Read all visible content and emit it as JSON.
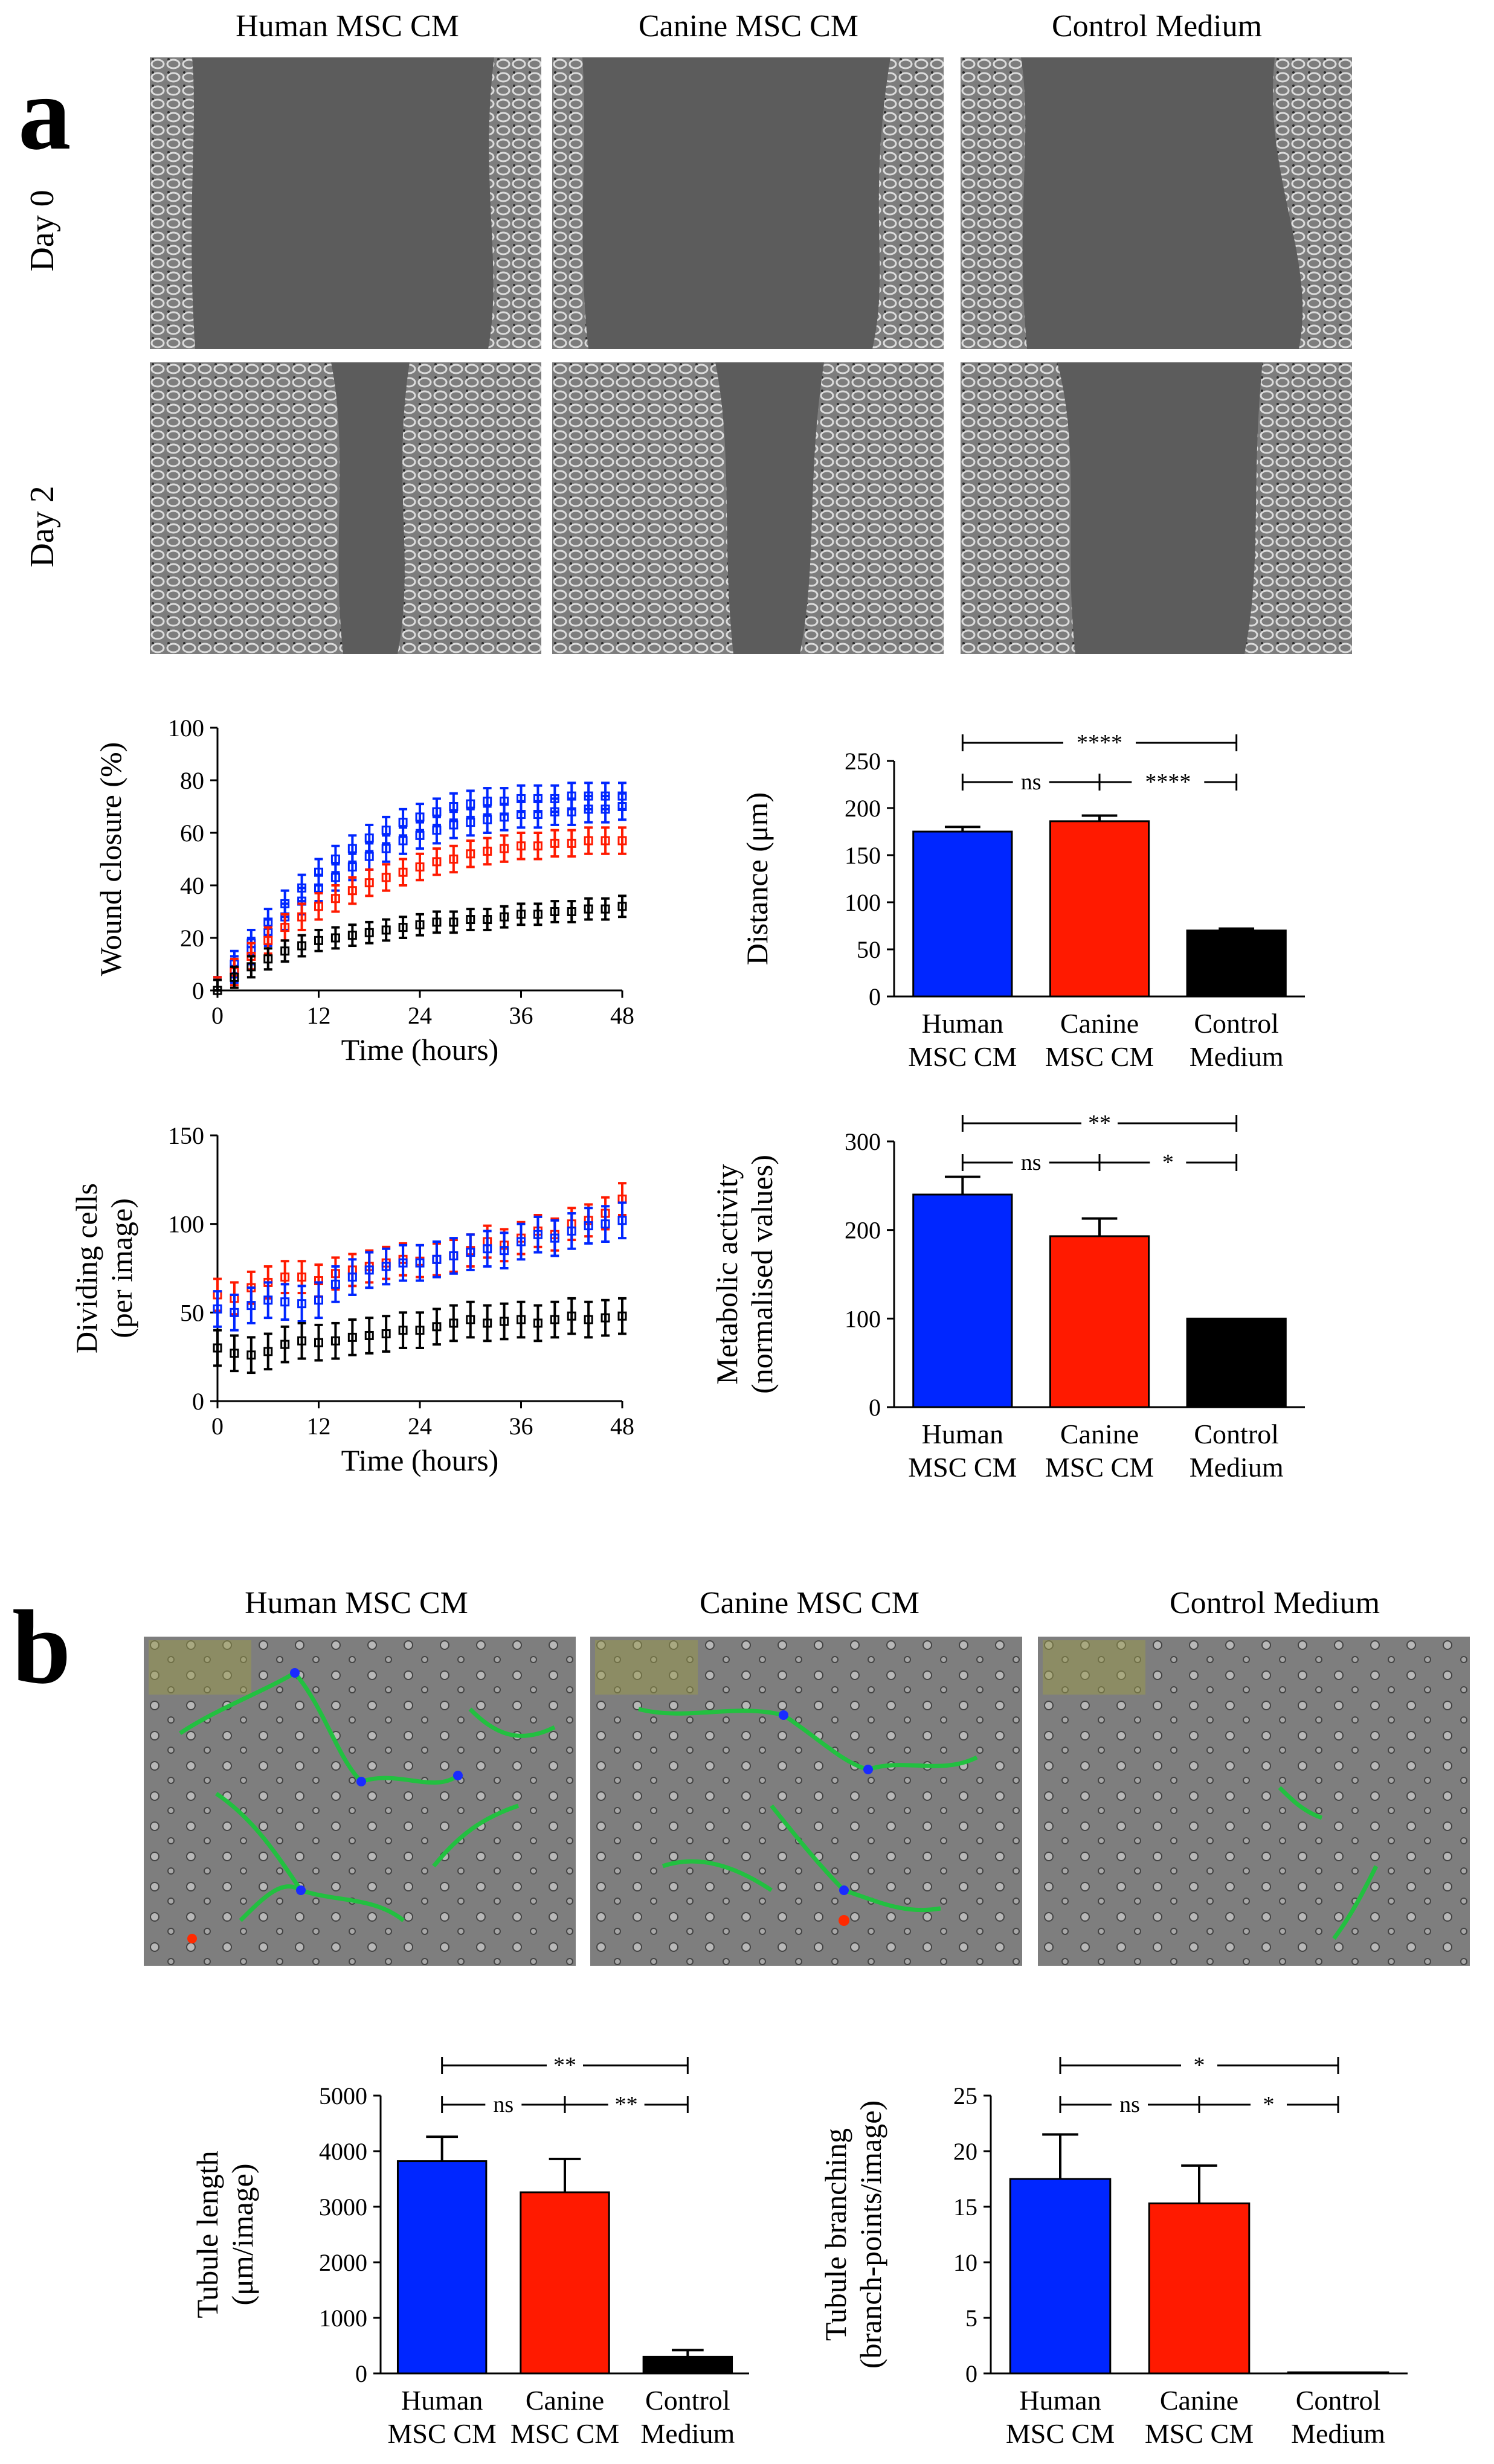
{
  "panel_a": {
    "letter": "a",
    "columns": [
      "Human MSC CM",
      "Canine MSC CM",
      "Control Medium"
    ],
    "rows": [
      "Day 0",
      "Day 2"
    ]
  },
  "panel_b": {
    "letter": "b",
    "columns": [
      "Human MSC CM",
      "Canine MSC CM",
      "Control Medium"
    ]
  },
  "colors": {
    "human": "#0026ff",
    "canine": "#ff1a00",
    "control": "#000000"
  },
  "chart_data": [
    {
      "id": "wound-closure",
      "type": "line",
      "xlabel": "Time (hours)",
      "ylabel": "Wound closure (%)",
      "xlim": [
        0,
        48
      ],
      "ylim": [
        0,
        100
      ],
      "xticks": [
        0,
        12,
        24,
        36,
        48
      ],
      "yticks": [
        0,
        20,
        40,
        60,
        80,
        100
      ],
      "series": [
        {
          "group": "human-a",
          "color": "#0026ff",
          "x": [
            0,
            2,
            4,
            6,
            8,
            10,
            12,
            14,
            16,
            18,
            20,
            22,
            24,
            26,
            28,
            30,
            32,
            34,
            36,
            38,
            40,
            42,
            44,
            46,
            48
          ],
          "y": [
            0,
            10,
            18,
            26,
            33,
            39,
            45,
            50,
            54,
            58,
            61,
            64,
            66,
            68,
            70,
            71,
            72,
            72,
            73,
            73,
            73,
            74,
            74,
            74,
            74
          ],
          "err": 5
        },
        {
          "group": "human-b",
          "color": "#0026ff",
          "x": [
            0,
            2,
            4,
            6,
            8,
            10,
            12,
            14,
            16,
            18,
            20,
            22,
            24,
            26,
            28,
            30,
            32,
            34,
            36,
            38,
            40,
            42,
            44,
            46,
            48
          ],
          "y": [
            0,
            8,
            15,
            22,
            28,
            34,
            39,
            43,
            47,
            51,
            54,
            57,
            59,
            61,
            63,
            64,
            65,
            66,
            67,
            67,
            68,
            68,
            69,
            69,
            70
          ],
          "err": 5
        },
        {
          "group": "canine",
          "color": "#ff1a00",
          "x": [
            0,
            2,
            4,
            6,
            8,
            10,
            12,
            14,
            16,
            18,
            20,
            22,
            24,
            26,
            28,
            30,
            32,
            34,
            36,
            38,
            40,
            42,
            44,
            46,
            48
          ],
          "y": [
            0,
            7,
            13,
            19,
            24,
            28,
            32,
            35,
            38,
            41,
            43,
            45,
            47,
            49,
            50,
            52,
            53,
            54,
            55,
            55,
            56,
            56,
            57,
            57,
            57
          ],
          "err": 5
        },
        {
          "group": "control",
          "color": "#000000",
          "x": [
            0,
            2,
            4,
            6,
            8,
            10,
            12,
            14,
            16,
            18,
            20,
            22,
            24,
            26,
            28,
            30,
            32,
            34,
            36,
            38,
            40,
            42,
            44,
            46,
            48
          ],
          "y": [
            0,
            5,
            9,
            12,
            15,
            17,
            19,
            20,
            21,
            22,
            23,
            24,
            25,
            26,
            26,
            27,
            27,
            28,
            29,
            29,
            30,
            30,
            31,
            31,
            32
          ],
          "err": 4
        }
      ]
    },
    {
      "id": "distance",
      "type": "bar",
      "ylabel": "Distance (μm)",
      "categories": [
        [
          "Human",
          "MSC CM"
        ],
        [
          "Canine",
          "MSC CM"
        ],
        [
          "Control",
          "Medium"
        ]
      ],
      "values": [
        175,
        186,
        70
      ],
      "errors": [
        5,
        6,
        2
      ],
      "colors": [
        "#0026ff",
        "#ff1a00",
        "#000000"
      ],
      "ylim": [
        0,
        250
      ],
      "yticks": [
        0,
        50,
        100,
        150,
        200,
        250
      ],
      "significance": [
        {
          "from": 0,
          "to": 2,
          "label": "****",
          "level": 2
        },
        {
          "from": 0,
          "to": 1,
          "label": "ns",
          "level": 1
        },
        {
          "from": 1,
          "to": 2,
          "label": "****",
          "level": 1
        }
      ]
    },
    {
      "id": "dividing-cells",
      "type": "line",
      "xlabel": "Time (hours)",
      "ylabel": [
        "Dividing cells",
        "(per image)"
      ],
      "xlim": [
        0,
        48
      ],
      "ylim": [
        0,
        150
      ],
      "xticks": [
        0,
        12,
        24,
        36,
        48
      ],
      "yticks": [
        0,
        50,
        100,
        150
      ],
      "series": [
        {
          "group": "canine",
          "color": "#ff1a00",
          "x": [
            0,
            2,
            4,
            6,
            8,
            10,
            12,
            14,
            16,
            18,
            20,
            22,
            24,
            26,
            28,
            30,
            32,
            34,
            36,
            38,
            40,
            42,
            44,
            46,
            48
          ],
          "y": [
            60,
            58,
            64,
            67,
            70,
            70,
            68,
            72,
            74,
            76,
            78,
            80,
            79,
            80,
            82,
            85,
            90,
            88,
            92,
            96,
            94,
            100,
            102,
            106,
            114
          ],
          "err": 9
        },
        {
          "group": "human",
          "color": "#0026ff",
          "x": [
            0,
            2,
            4,
            6,
            8,
            10,
            12,
            14,
            16,
            18,
            20,
            22,
            24,
            26,
            28,
            30,
            32,
            34,
            36,
            38,
            40,
            42,
            44,
            46,
            48
          ],
          "y": [
            52,
            50,
            54,
            57,
            56,
            55,
            57,
            66,
            70,
            74,
            76,
            78,
            78,
            80,
            82,
            84,
            86,
            85,
            90,
            94,
            92,
            96,
            99,
            100,
            102
          ],
          "err": 10
        },
        {
          "group": "control",
          "color": "#000000",
          "x": [
            0,
            2,
            4,
            6,
            8,
            10,
            12,
            14,
            16,
            18,
            20,
            22,
            24,
            26,
            28,
            30,
            32,
            34,
            36,
            38,
            40,
            42,
            44,
            46,
            48
          ],
          "y": [
            30,
            27,
            26,
            28,
            32,
            34,
            33,
            34,
            36,
            37,
            38,
            40,
            40,
            42,
            44,
            46,
            44,
            45,
            46,
            44,
            46,
            48,
            46,
            47,
            48
          ],
          "err": 10
        }
      ]
    },
    {
      "id": "metabolic-activity",
      "type": "bar",
      "ylabel": [
        "Metabolic activity",
        "(normalised values)"
      ],
      "categories": [
        [
          "Human",
          "MSC CM"
        ],
        [
          "Canine",
          "MSC CM"
        ],
        [
          "Control",
          "Medium"
        ]
      ],
      "values": [
        240,
        193,
        100
      ],
      "errors": [
        20,
        20,
        0
      ],
      "colors": [
        "#0026ff",
        "#ff1a00",
        "#000000"
      ],
      "ylim": [
        0,
        300
      ],
      "yticks": [
        0,
        100,
        200,
        300
      ],
      "significance": [
        {
          "from": 0,
          "to": 2,
          "label": "**",
          "level": 2
        },
        {
          "from": 0,
          "to": 1,
          "label": "ns",
          "level": 1
        },
        {
          "from": 1,
          "to": 2,
          "label": "*",
          "level": 1
        }
      ]
    },
    {
      "id": "tubule-length",
      "type": "bar",
      "ylabel": [
        "Tubule length",
        "(μm/image)"
      ],
      "categories": [
        [
          "Human",
          "MSC CM"
        ],
        [
          "Canine",
          "MSC CM"
        ],
        [
          "Control",
          "Medium"
        ]
      ],
      "values": [
        3820,
        3260,
        300
      ],
      "errors": [
        440,
        600,
        120
      ],
      "colors": [
        "#0026ff",
        "#ff1a00",
        "#000000"
      ],
      "ylim": [
        0,
        5000
      ],
      "yticks": [
        0,
        1000,
        2000,
        3000,
        4000,
        5000
      ],
      "significance": [
        {
          "from": 0,
          "to": 2,
          "label": "**",
          "level": 2
        },
        {
          "from": 0,
          "to": 1,
          "label": "ns",
          "level": 1
        },
        {
          "from": 1,
          "to": 2,
          "label": "**",
          "level": 1
        }
      ]
    },
    {
      "id": "tubule-branching",
      "type": "bar",
      "ylabel": [
        "Tubule branching",
        "(branch-points/image)"
      ],
      "categories": [
        [
          "Human",
          "MSC CM"
        ],
        [
          "Canine",
          "MSC CM"
        ],
        [
          "Control",
          "Medium"
        ]
      ],
      "values": [
        17.5,
        15.3,
        0.1
      ],
      "errors": [
        4,
        3.4,
        0
      ],
      "colors": [
        "#0026ff",
        "#ff1a00",
        "#000000"
      ],
      "ylim": [
        0,
        25
      ],
      "yticks": [
        0,
        5,
        10,
        15,
        20,
        25
      ],
      "significance": [
        {
          "from": 0,
          "to": 2,
          "label": "*",
          "level": 2
        },
        {
          "from": 0,
          "to": 1,
          "label": "ns",
          "level": 1
        },
        {
          "from": 1,
          "to": 2,
          "label": "*",
          "level": 1
        }
      ]
    }
  ]
}
